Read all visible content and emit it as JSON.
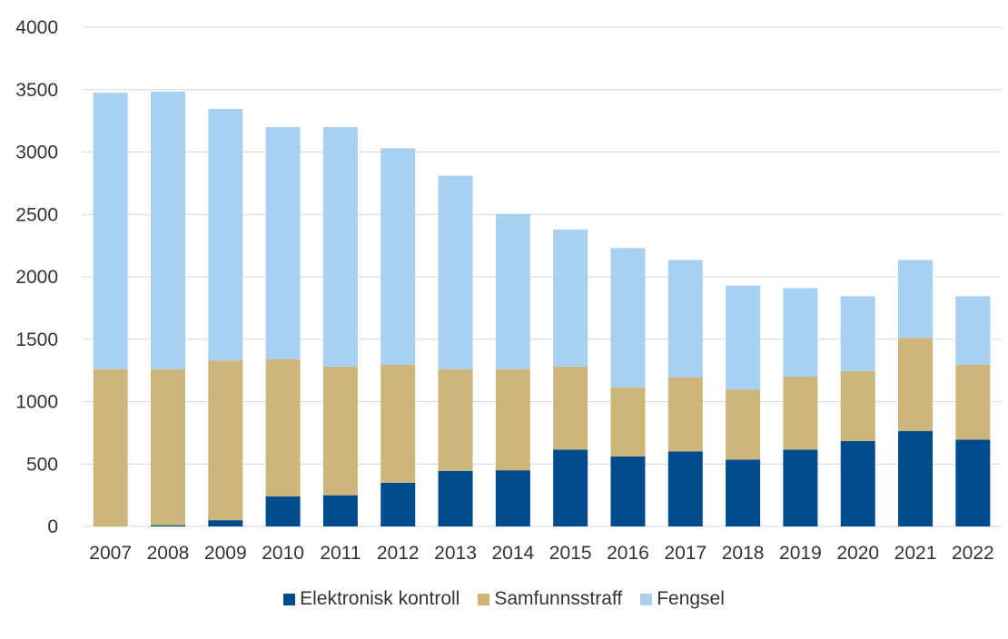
{
  "chart_data": {
    "type": "bar",
    "stacked": true,
    "categories": [
      "2007",
      "2008",
      "2009",
      "2010",
      "2011",
      "2012",
      "2013",
      "2014",
      "2015",
      "2016",
      "2017",
      "2018",
      "2019",
      "2020",
      "2021",
      "2022"
    ],
    "series": [
      {
        "name": "Elektronisk kontroll",
        "color": "#004B8D",
        "values": [
          0,
          10,
          50,
          240,
          250,
          350,
          445,
          450,
          615,
          560,
          600,
          535,
          615,
          685,
          765,
          695
        ]
      },
      {
        "name": "Samfunnsstraff",
        "color": "#CDB67A",
        "values": [
          1260,
          1250,
          1280,
          1100,
          1030,
          945,
          815,
          810,
          665,
          555,
          595,
          560,
          585,
          560,
          745,
          600
        ]
      },
      {
        "name": "Fengsel",
        "color": "#A8D0F0",
        "values": [
          2215,
          2225,
          2015,
          1860,
          1920,
          1735,
          1550,
          1245,
          1100,
          1115,
          940,
          835,
          710,
          600,
          625,
          550
        ]
      }
    ],
    "ylim": [
      0,
      4000
    ],
    "yticks": [
      "0",
      "500",
      "1000",
      "1500",
      "2000",
      "2500",
      "3000",
      "3500",
      "4000"
    ],
    "ytick_values": [
      0,
      500,
      1000,
      1500,
      2000,
      2500,
      3000,
      3500,
      4000
    ],
    "grid": true,
    "gridline_color": "#D9D9D9",
    "legend_position": "bottom"
  }
}
